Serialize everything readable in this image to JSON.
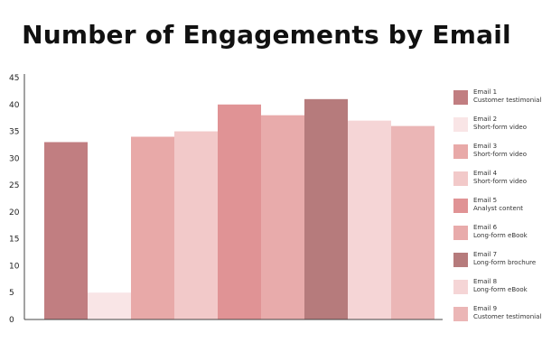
{
  "chart_data": {
    "type": "bar",
    "title": "Number of Engagements by Email",
    "xlabel": "",
    "ylabel": "",
    "ylim": [
      0,
      45
    ],
    "yticks": [
      0,
      5,
      10,
      15,
      20,
      25,
      30,
      35,
      40,
      45
    ],
    "grid": false,
    "legend_position": "right",
    "categories": [
      "Email 1",
      "Email 2",
      "Email 3",
      "Email 4",
      "Email 5",
      "Email 6",
      "Email 7",
      "Email 8",
      "Email 9"
    ],
    "subtitles": [
      "Customer testimonial",
      "Short-form video",
      "Short-form video",
      "Short-form video",
      "Analyst content",
      "Long-form eBook",
      "Long-form brochure",
      "Long-form eBook",
      "Customer testimonial"
    ],
    "values": [
      33,
      5,
      34,
      35,
      40,
      38,
      41,
      37,
      36
    ],
    "colors": [
      "#c17e81",
      "#f9e5e6",
      "#e8a9a8",
      "#f2c9c9",
      "#e09395",
      "#e8abab",
      "#b67b7c",
      "#f5d5d6",
      "#ebb6b6"
    ]
  }
}
